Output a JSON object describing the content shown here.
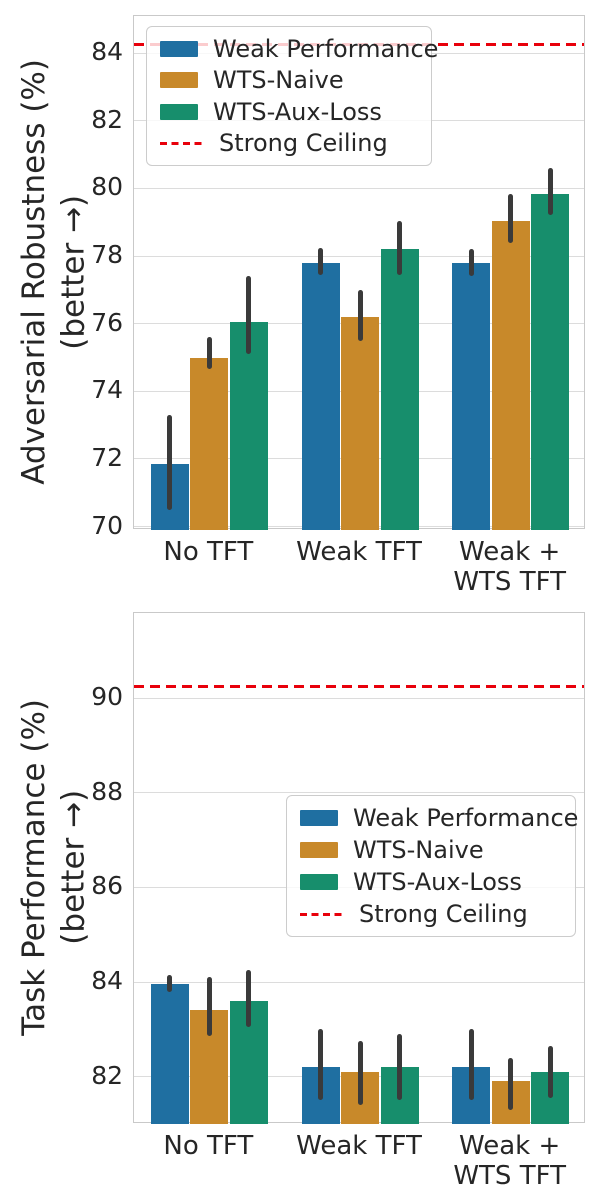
{
  "palette": {
    "text": "#262626",
    "grid": "#dcdcdc",
    "spine": "#c9c9c9",
    "error_bar": "#3a3a3a",
    "ceiling_red": "#e8000b",
    "legend_border": "#cccccc",
    "series_blue": "#1f6fa1",
    "series_orange": "#c8892a",
    "series_green": "#178e6c"
  },
  "chart_data": [
    {
      "type": "bar",
      "title": "",
      "ylabel": "Adversarial Robustness (%)",
      "ylabel_sub": "(better →)",
      "xlabel": "",
      "categories": [
        "No TFT",
        "Weak TFT",
        "Weak + WTS TFT"
      ],
      "category_lines": [
        [
          "No TFT"
        ],
        [
          "Weak TFT"
        ],
        [
          "Weak +",
          "WTS TFT"
        ]
      ],
      "ylim": [
        69.9,
        85.1
      ],
      "yticks": [
        70,
        72,
        74,
        76,
        78,
        80,
        82,
        84
      ],
      "grid": true,
      "legend_position": "upper-left",
      "series": [
        {
          "name": "Weak Performance",
          "color": "#1f6fa1",
          "values": [
            71.85,
            77.8,
            77.8
          ],
          "err_low": [
            70.5,
            77.45,
            77.4
          ],
          "err_high": [
            73.3,
            78.25,
            78.2
          ]
        },
        {
          "name": "WTS-Naive",
          "color": "#c8892a",
          "values": [
            75.0,
            76.2,
            79.05
          ],
          "err_low": [
            74.65,
            75.5,
            78.4
          ],
          "err_high": [
            75.6,
            77.0,
            79.85
          ]
        },
        {
          "name": "WTS-Aux-Loss",
          "color": "#178e6c",
          "values": [
            76.05,
            78.2,
            79.85
          ],
          "err_low": [
            75.1,
            77.45,
            79.2
          ],
          "err_high": [
            77.4,
            79.05,
            80.6
          ]
        }
      ],
      "ceiling": {
        "label": "Strong Ceiling",
        "value": 84.25,
        "color": "#e8000b",
        "style": "dashed"
      }
    },
    {
      "type": "bar",
      "title": "",
      "ylabel": "Task Performance (%)",
      "ylabel_sub": "(better →)",
      "xlabel": "",
      "categories": [
        "No TFT",
        "Weak TFT",
        "Weak + WTS TFT"
      ],
      "category_lines": [
        [
          "No TFT"
        ],
        [
          "Weak TFT"
        ],
        [
          "Weak +",
          "WTS TFT"
        ]
      ],
      "ylim": [
        81.0,
        91.8
      ],
      "yticks": [
        82,
        84,
        86,
        88,
        90
      ],
      "grid": true,
      "legend_position": "center-right",
      "series": [
        {
          "name": "Weak Performance",
          "color": "#1f6fa1",
          "values": [
            83.95,
            82.2,
            82.2
          ],
          "err_low": [
            83.8,
            81.5,
            81.5
          ],
          "err_high": [
            84.15,
            83.0,
            83.0
          ]
        },
        {
          "name": "WTS-Naive",
          "color": "#c8892a",
          "values": [
            83.4,
            82.1,
            81.9
          ],
          "err_low": [
            82.85,
            81.4,
            81.3
          ],
          "err_high": [
            84.1,
            82.75,
            82.4
          ]
        },
        {
          "name": "WTS-Aux-Loss",
          "color": "#178e6c",
          "values": [
            83.6,
            82.2,
            82.1
          ],
          "err_low": [
            83.05,
            81.5,
            81.55
          ],
          "err_high": [
            84.25,
            82.9,
            82.65
          ]
        }
      ],
      "ceiling": {
        "label": "Strong Ceiling",
        "value": 90.25,
        "color": "#e8000b",
        "style": "dashed"
      }
    }
  ]
}
